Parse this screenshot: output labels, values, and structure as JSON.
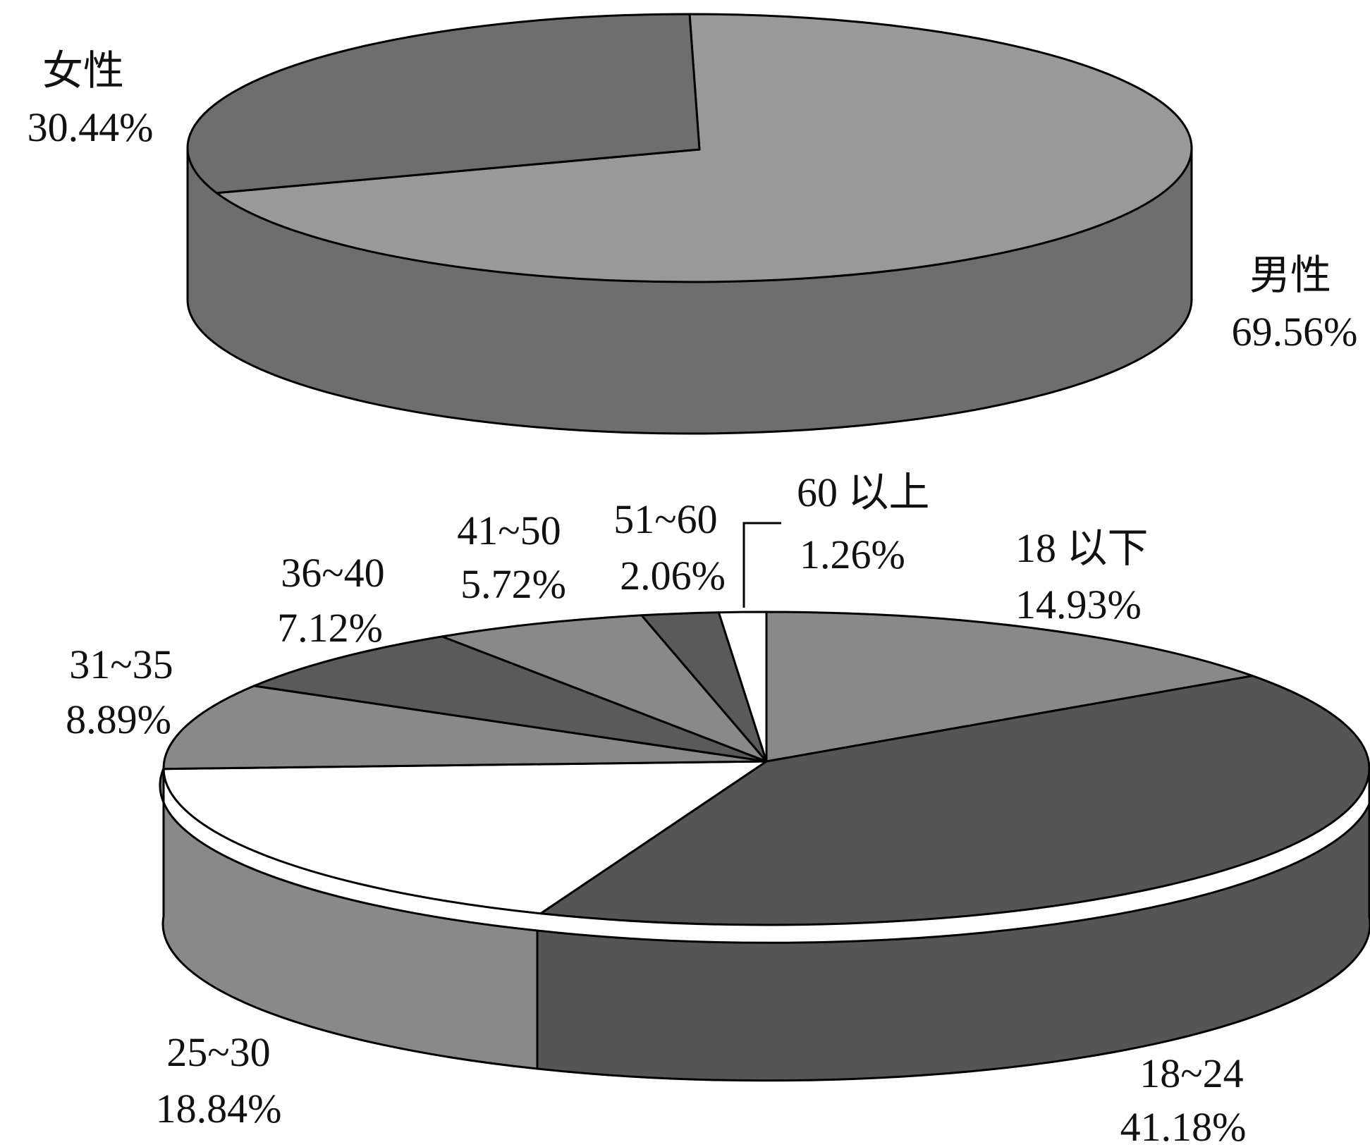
{
  "chart_data": [
    {
      "type": "pie",
      "style": "3d",
      "slices": [
        {
          "name": "男性",
          "label": "69.56%",
          "value": 69.56,
          "color": "#999999"
        },
        {
          "name": "女性",
          "label": "30.44%",
          "value": 30.44,
          "color": "#6e6e6e"
        }
      ]
    },
    {
      "type": "pie",
      "style": "3d",
      "slices": [
        {
          "name": "18 以下",
          "label": "14.93%",
          "value": 14.93,
          "color": "#898989"
        },
        {
          "name": "18~24",
          "label": "41.18%",
          "value": 41.18,
          "color": "#555555"
        },
        {
          "name": "25~30",
          "label": "18.84%",
          "value": 18.84,
          "color": "#ffffff"
        },
        {
          "name": "31~35",
          "label": "8.89%",
          "value": 8.89,
          "color": "#898989"
        },
        {
          "name": "36~40",
          "label": "7.12%",
          "value": 7.12,
          "color": "#5a5a5a"
        },
        {
          "name": "41~50",
          "label": "5.72%",
          "value": 5.72,
          "color": "#898989"
        },
        {
          "name": "51~60",
          "label": "2.06%",
          "value": 2.06,
          "color": "#5a5a5a"
        },
        {
          "name": "60 以上",
          "label": "1.26%",
          "value": 1.26,
          "color": "#ffffff"
        }
      ]
    }
  ]
}
